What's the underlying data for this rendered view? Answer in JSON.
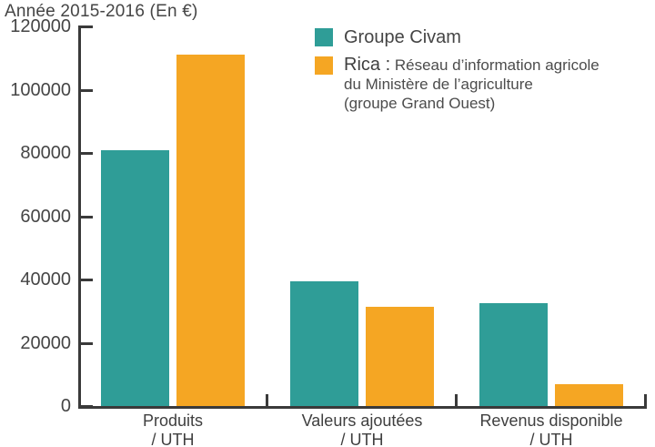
{
  "chart_data": {
    "type": "bar",
    "title": "Année 2015-2016 (En €)",
    "categories": [
      "Produits / UTH",
      "Valeurs ajoutées / UTH",
      "Revenus disponible / UTH"
    ],
    "category_lines": [
      [
        "Produits",
        "/ UTH"
      ],
      [
        "Valeurs ajoutées",
        "/ UTH"
      ],
      [
        "Revenus disponible",
        "/ UTH"
      ]
    ],
    "series": [
      {
        "name": "Groupe Civam",
        "color": "#2F9D97",
        "values": [
          81000,
          39500,
          32500
        ]
      },
      {
        "name": "Rica",
        "color": "#F5A623",
        "values": [
          111000,
          31500,
          7000
        ]
      }
    ],
    "ylim": [
      0,
      120000
    ],
    "yticks": [
      0,
      20000,
      40000,
      60000,
      80000,
      100000,
      120000
    ],
    "grid": false,
    "legend_position": "top-right",
    "xlabel": "",
    "ylabel": ""
  },
  "legend": {
    "civam_label": "Groupe Civam",
    "rica_lead": "Rica :",
    "rica_line1": "Réseau d’information agricole",
    "rica_line2": "du Ministère de l’agriculture",
    "rica_line3": "(groupe Grand Ouest)"
  },
  "colors": {
    "civam": "#2F9D97",
    "rica": "#F5A623",
    "axis": "#3a3a3a",
    "text": "#454545"
  }
}
